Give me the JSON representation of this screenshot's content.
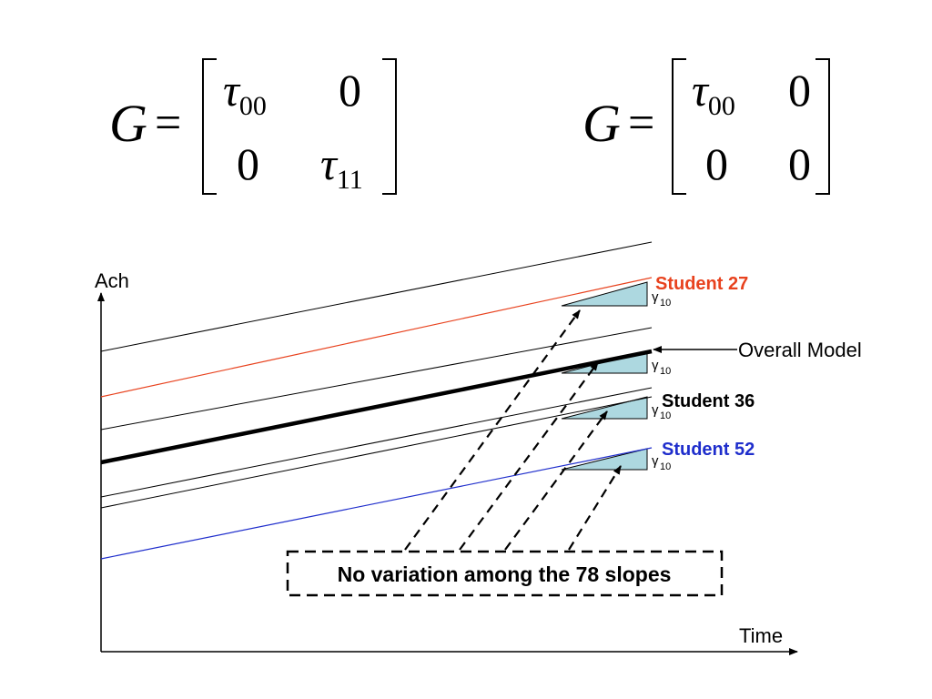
{
  "matrix_left": {
    "lhs": "G",
    "equals": "=",
    "cells": [
      {
        "symbol": "τ",
        "sub": "00"
      },
      {
        "symbol": "0",
        "sub": ""
      },
      {
        "symbol": "0",
        "sub": ""
      },
      {
        "symbol": "τ",
        "sub": "11"
      }
    ]
  },
  "matrix_right": {
    "lhs": "G",
    "equals": "=",
    "cells": [
      {
        "symbol": "τ",
        "sub": "00"
      },
      {
        "symbol": "0",
        "sub": ""
      },
      {
        "symbol": "0",
        "sub": ""
      },
      {
        "symbol": "0",
        "sub": ""
      }
    ]
  },
  "diagram": {
    "y_axis_label": "Ach",
    "x_axis_label": "Time",
    "labels": {
      "student_27": "Student 27",
      "overall_model": "Overall Model",
      "student_36": "Student 36",
      "student_52": "Student 52",
      "slope_symbol": "γ",
      "slope_sub": "10"
    },
    "callout": "No variation among the 78 slopes",
    "colors": {
      "student_27": "#e8421e",
      "student_52": "#1f2ecc",
      "slope_fill": "#add8e0",
      "line": "#000000"
    }
  }
}
